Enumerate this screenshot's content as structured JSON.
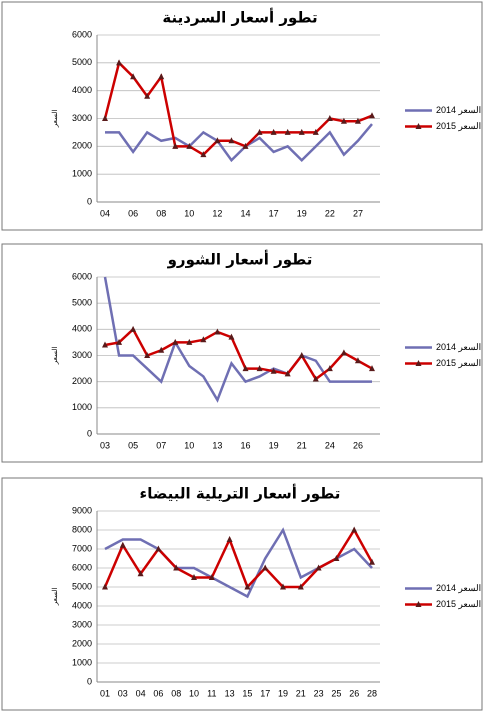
{
  "chart_data": [
    {
      "type": "line",
      "title": "تطور أسعار السردينة",
      "y_label": "السعر",
      "categories": [
        "04",
        null,
        "06",
        null,
        "08",
        null,
        "10",
        null,
        "12",
        null,
        "14",
        null,
        "17",
        null,
        "19",
        null,
        "22",
        null,
        "27",
        null
      ],
      "series": [
        {
          "name": "السعر 2014",
          "color": "#6f6fb3",
          "marker": "none",
          "values": [
            2500,
            2500,
            1800,
            2500,
            2200,
            2300,
            2000,
            2500,
            2200,
            1500,
            2000,
            2300,
            1800,
            2000,
            1500,
            2000,
            2500,
            1700,
            2200,
            2800
          ]
        },
        {
          "name": "السعر 2015",
          "color": "#cc0000",
          "marker": "triangle",
          "values": [
            3000,
            5000,
            4500,
            3800,
            4500,
            2000,
            2000,
            1700,
            2200,
            2200,
            2000,
            2500,
            2500,
            2500,
            2500,
            2500,
            3000,
            2900,
            2900,
            3100
          ]
        }
      ],
      "ylim": [
        0,
        6000
      ],
      "yticks": [
        0,
        1000,
        2000,
        3000,
        4000,
        5000,
        6000
      ],
      "grid": true,
      "legend": "right"
    },
    {
      "type": "line",
      "title": "تطور أسعار الشورو",
      "y_label": "السعر",
      "categories": [
        "03",
        null,
        "05",
        null,
        "07",
        null,
        "10",
        null,
        "13",
        null,
        "16",
        null,
        "19",
        null,
        "21",
        null,
        "24",
        null,
        "26",
        null
      ],
      "series": [
        {
          "name": "السعر 2014",
          "color": "#6f6fb3",
          "marker": "none",
          "values": [
            6000,
            3000,
            3000,
            2500,
            2000,
            3500,
            2600,
            2200,
            1300,
            2700,
            2000,
            2200,
            2500,
            2300,
            3000,
            2800,
            2000,
            2000,
            2000,
            2000
          ]
        },
        {
          "name": "السعر 2015",
          "color": "#cc0000",
          "marker": "triangle",
          "values": [
            3400,
            3500,
            4000,
            3000,
            3200,
            3500,
            3500,
            3600,
            3900,
            3700,
            2500,
            2500,
            2400,
            2300,
            3000,
            2100,
            2500,
            3100,
            2800,
            2500
          ]
        }
      ],
      "ylim": [
        0,
        6000
      ],
      "yticks": [
        0,
        1000,
        2000,
        3000,
        4000,
        5000,
        6000
      ],
      "grid": true,
      "legend": "right"
    },
    {
      "type": "line",
      "title": "تطور أسعار التريلية البيضاء",
      "y_label": "السعر",
      "categories": [
        "01",
        "03",
        "04",
        "06",
        "08",
        "10",
        "11",
        "13",
        "15",
        "17",
        "19",
        "21",
        "23",
        "25",
        "26",
        "28"
      ],
      "series": [
        {
          "name": "السعر 2014",
          "color": "#6f6fb3",
          "marker": "none",
          "values": [
            7000,
            7500,
            7500,
            7000,
            6000,
            6000,
            5500,
            5000,
            4500,
            6500,
            8000,
            5500,
            6000,
            6500,
            7000,
            6000
          ]
        },
        {
          "name": "السعر 2015",
          "color": "#cc0000",
          "marker": "triangle",
          "values": [
            5000,
            7200,
            5700,
            7000,
            6000,
            5500,
            5500,
            7500,
            5000,
            6000,
            5000,
            5000,
            6000,
            6500,
            8000,
            6300
          ]
        }
      ],
      "ylim": [
        0,
        9000
      ],
      "yticks": [
        0,
        1000,
        2000,
        3000,
        4000,
        5000,
        6000,
        7000,
        8000,
        9000
      ],
      "grid": true,
      "legend": "right"
    }
  ]
}
